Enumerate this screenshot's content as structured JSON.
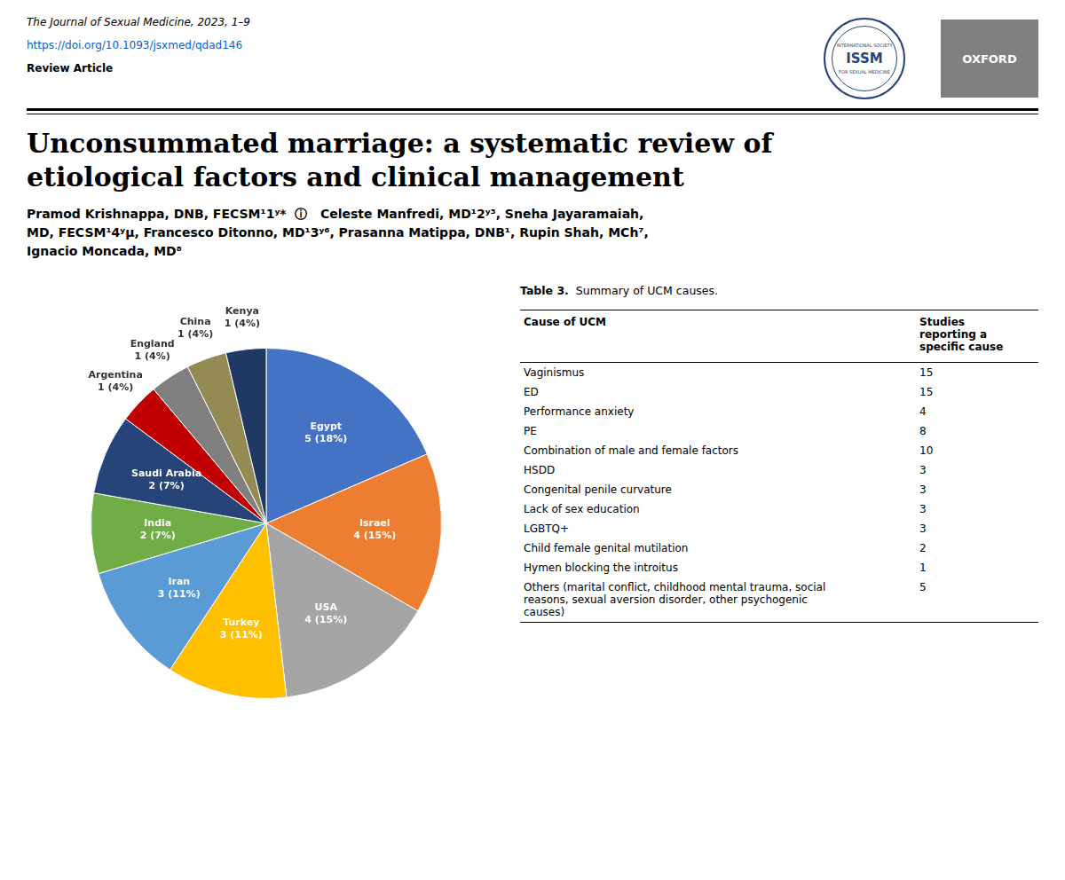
{
  "chart_data": {
    "type": "pie",
    "title": [
      "Unconsummated marriage: a systematic review of",
      "etiological factors and clinical management"
    ],
    "subtitle": [
      "Pramod Krishnappa, DNB, FECSM¹1ʸ*  ⓘ   Celeste Manfredi, MD¹2ʸ³, Sneha Jayaramaiah,",
      "MD, FECSM¹4ʸµ, Francesco Ditonno, MD¹3ʸ⁶, Prasanna Matippa, DNB¹, Rupin Shah, MCh⁷,",
      "Ignacio Moncada, MD⁸"
    ],
    "annotations": [
      "The Journal of Sexual Medicine, 2023, 1–9",
      "https://doi.org/10.1093/jsxmed/qdad146",
      "Review Article",
      "INTERNATIONAL SOCIETY",
      "ISSM",
      "FOR SEXUAL MEDICINE",
      "OXFORD"
    ],
    "categories": [
      "Egypt",
      "Israel",
      "USA",
      "Turkey",
      "Iran",
      "India",
      "Saudi Arabia",
      "Argentina",
      "England",
      "China",
      "Kenya"
    ],
    "values": [
      5,
      4,
      4,
      3,
      3,
      2,
      2,
      1,
      1,
      1,
      1
    ],
    "value_labels": [
      "5 (18%)",
      "4 (15%)",
      "4 (15%)",
      "3 (11%)",
      "3 (11%)",
      "2 (7%)",
      "2 (7%)",
      "1 (4%)",
      "1 (4%)",
      "1 (4%)",
      "1 (4%)"
    ],
    "colors": [
      "#4472C4",
      "#ED7D31",
      "#A5A5A5",
      "#FFC000",
      "#5B9BD5",
      "#70AD47",
      "#264478",
      "#C00000",
      "#7F7F7F",
      "#948A54",
      "#203864"
    ],
    "data_labels": true,
    "table": {
      "title": [
        "Table 3.",
        "  Summary of UCM causes."
      ],
      "columns": [
        "Cause of UCM",
        "Studies\nreporting a\nspecific cause"
      ],
      "rows": [
        [
          "Vaginismus",
          "15"
        ],
        [
          "ED",
          "15"
        ],
        [
          "Performance anxiety",
          "4"
        ],
        [
          "PE",
          "8"
        ],
        [
          "Combination of male and female factors",
          "10"
        ],
        [
          "HSDD",
          "3"
        ],
        [
          "Congenital penile curvature",
          "3"
        ],
        [
          "Lack of sex education",
          "3"
        ],
        [
          "LGBTQ+",
          "3"
        ],
        [
          "Child female genital mutilation",
          "2"
        ],
        [
          "Hymen blocking the introitus",
          "1"
        ],
        [
          "Others (marital conflict, childhood mental trauma, social\nreasons, sexual aversion disorder, other psychogenic\ncauses)",
          "5"
        ]
      ]
    }
  }
}
